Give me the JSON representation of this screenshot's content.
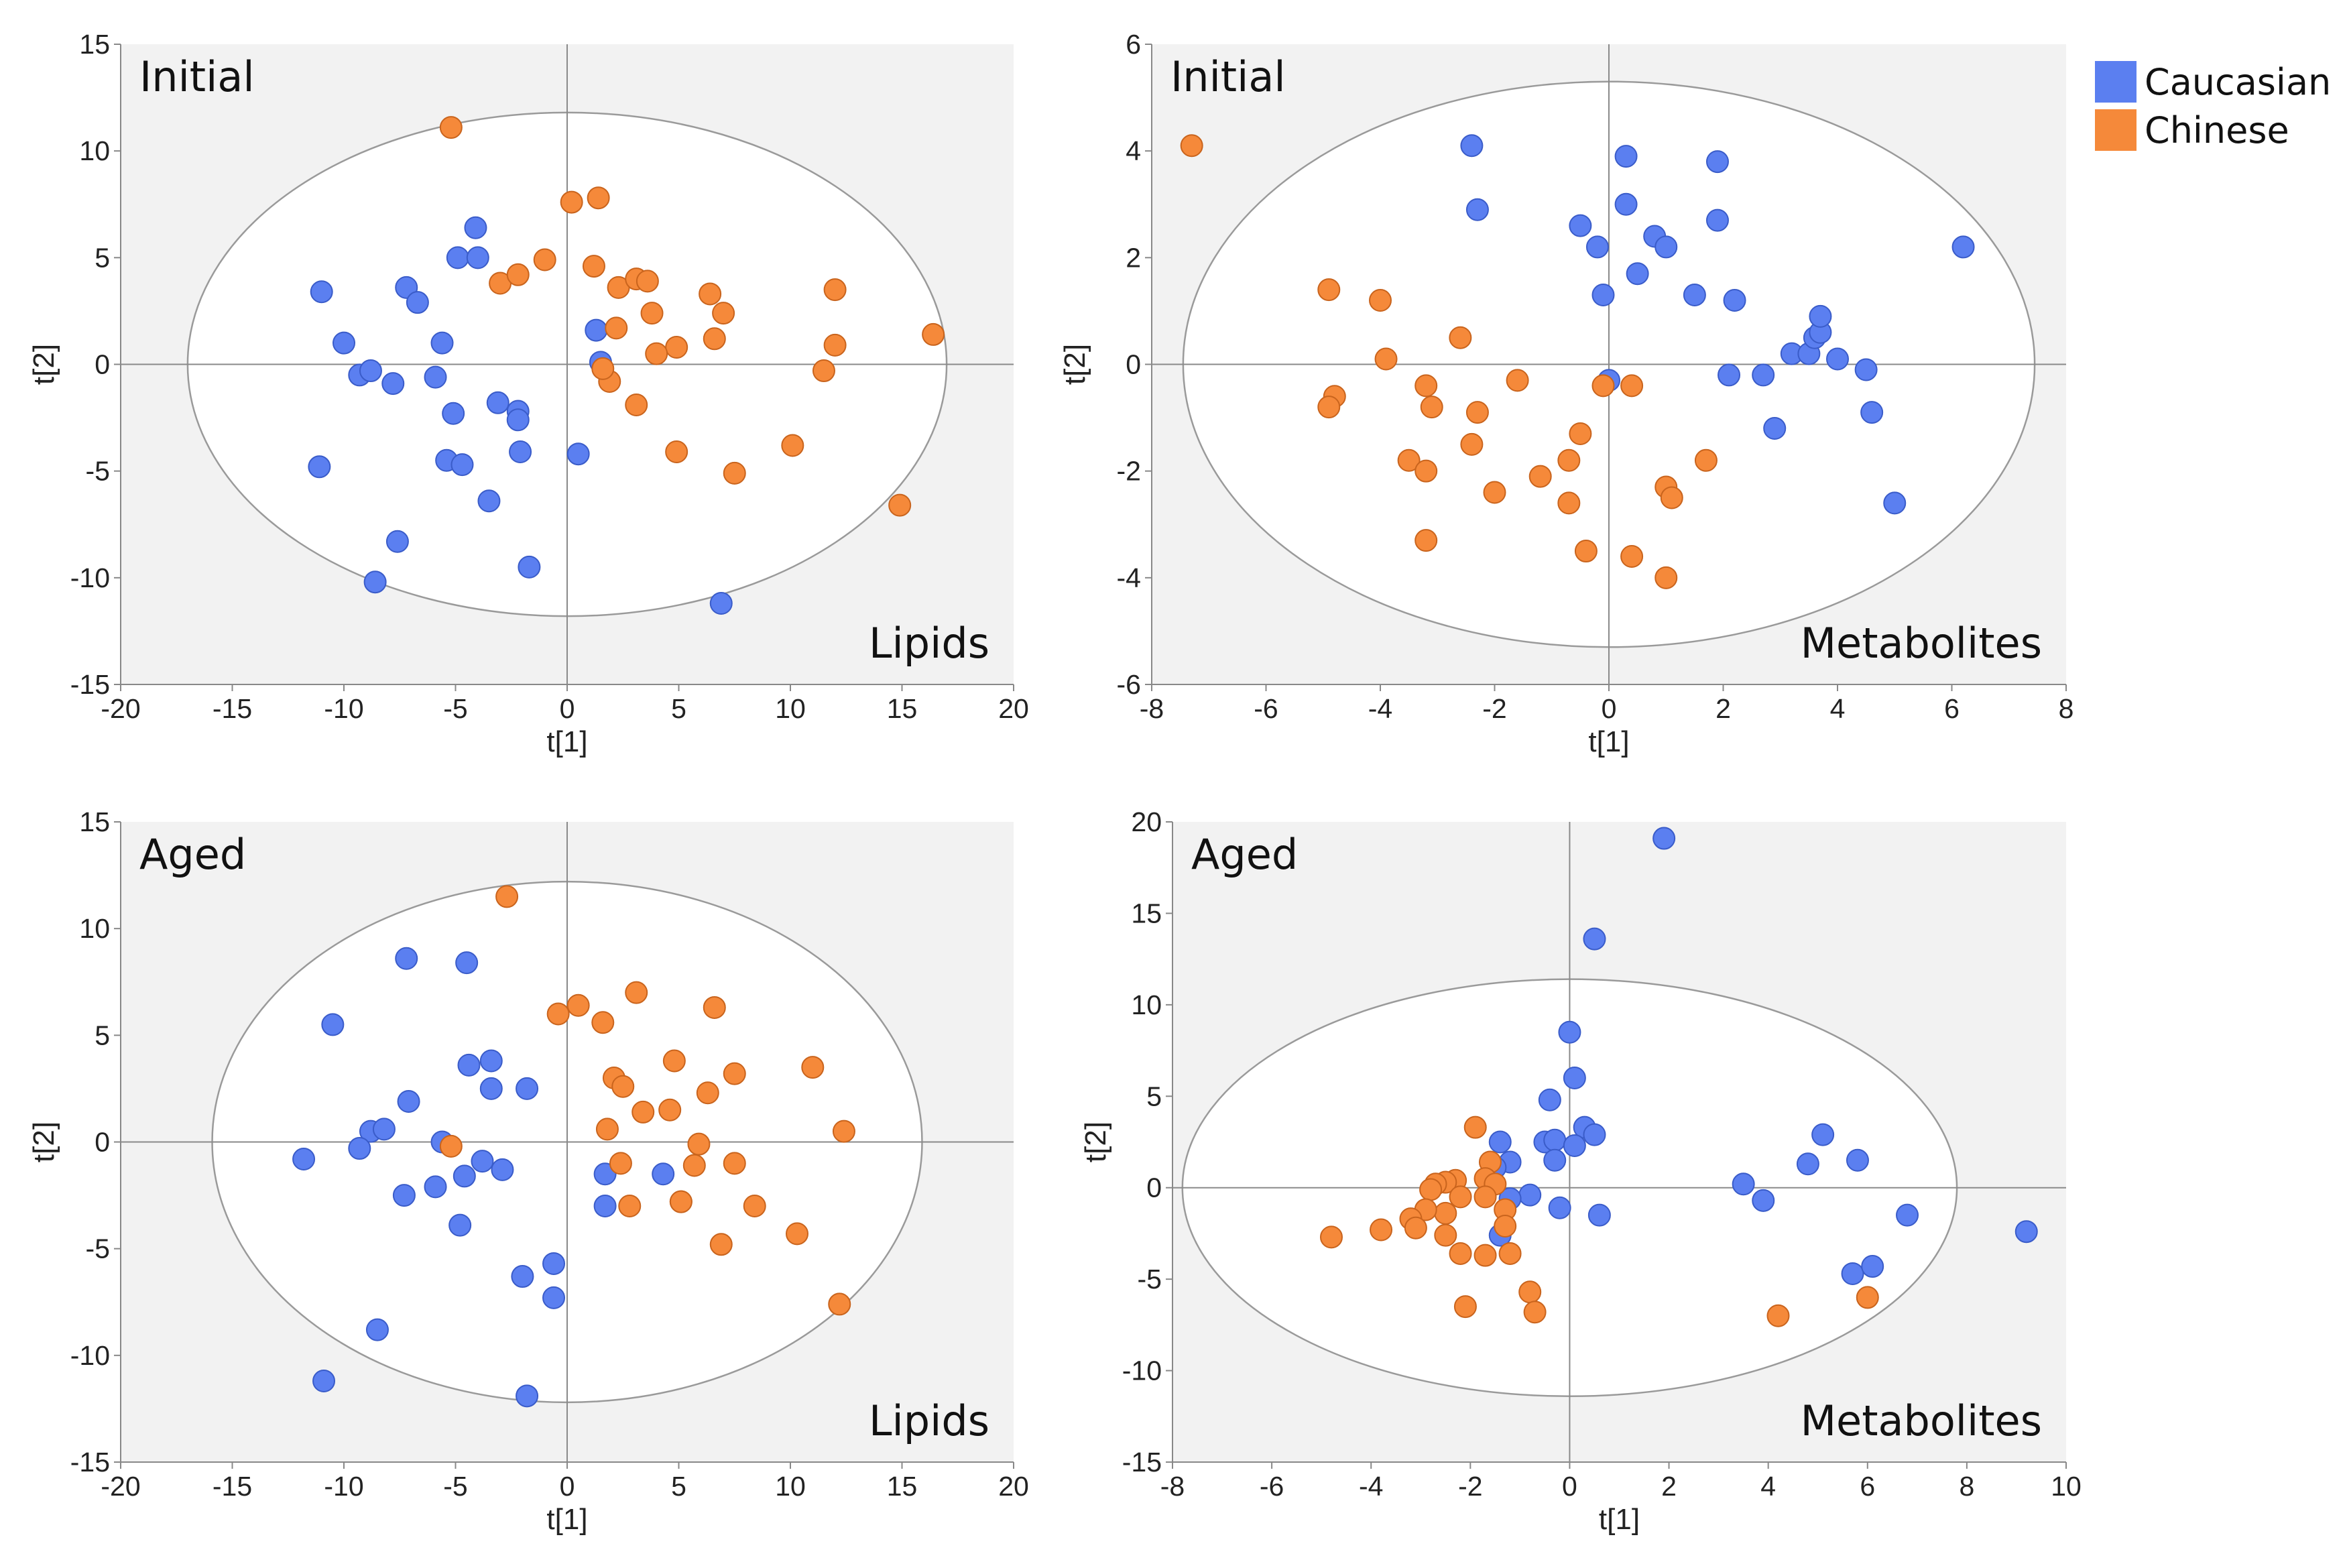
{
  "legend": {
    "caucasian_label": "Caucasian",
    "chinese_label": "Chinese"
  },
  "colors": {
    "caucasian": "#5B7FF0",
    "chinese": "#F5893A",
    "plot_bg": "#F2F2F2",
    "ellipse": "#9A9A9A"
  },
  "chart_data": [
    {
      "type": "scatter",
      "title": "Initial",
      "annotation": "Lipids",
      "xlabel": "t[1]",
      "ylabel": "t[2]",
      "xlim": [
        -20,
        20
      ],
      "ylim": [
        -15,
        15
      ],
      "xticks": [
        -20,
        -15,
        -10,
        -5,
        0,
        5,
        10,
        15,
        20
      ],
      "yticks": [
        -15,
        -10,
        -5,
        0,
        5,
        10,
        15
      ],
      "ellipse": {
        "cx": 0,
        "cy": 0,
        "rx": 17,
        "ry": 11.8
      },
      "series": [
        {
          "name": "Caucasian",
          "points": [
            [
              -11,
              3.4
            ],
            [
              -10,
              1
            ],
            [
              -9.3,
              -0.5
            ],
            [
              -8.8,
              -0.3
            ],
            [
              -7.8,
              -0.9
            ],
            [
              -7.2,
              3.6
            ],
            [
              -6.7,
              2.9
            ],
            [
              -5.9,
              -0.6
            ],
            [
              -5.6,
              1
            ],
            [
              -5.4,
              -4.5
            ],
            [
              -5.1,
              -2.3
            ],
            [
              -4.9,
              5
            ],
            [
              -4.7,
              -4.7
            ],
            [
              -4.1,
              6.4
            ],
            [
              -4,
              5
            ],
            [
              -3.5,
              -6.4
            ],
            [
              -3.1,
              -1.8
            ],
            [
              -2.2,
              -2.2
            ],
            [
              -2.2,
              -2.6
            ],
            [
              -2.1,
              -4.1
            ],
            [
              -1.7,
              -9.5
            ],
            [
              0.5,
              -4.2
            ],
            [
              1.3,
              1.6
            ],
            [
              1.5,
              0.1
            ],
            [
              -11.1,
              -4.8
            ],
            [
              -8.6,
              -10.2
            ],
            [
              -7.6,
              -8.3
            ],
            [
              6.9,
              -11.2
            ]
          ]
        },
        {
          "name": "Chinese",
          "points": [
            [
              -5.2,
              11.1
            ],
            [
              0.2,
              7.6
            ],
            [
              1.4,
              7.8
            ],
            [
              -3,
              3.8
            ],
            [
              -2.2,
              4.2
            ],
            [
              -1,
              4.9
            ],
            [
              1.2,
              4.6
            ],
            [
              2.3,
              3.6
            ],
            [
              3.1,
              4
            ],
            [
              3.6,
              3.9
            ],
            [
              3.8,
              2.4
            ],
            [
              2.2,
              1.7
            ],
            [
              4.9,
              0.8
            ],
            [
              3.1,
              -1.9
            ],
            [
              1.9,
              -0.8
            ],
            [
              1.6,
              -0.2
            ],
            [
              4,
              0.5
            ],
            [
              6.4,
              3.3
            ],
            [
              6.6,
              1.2
            ],
            [
              7,
              2.4
            ],
            [
              4.9,
              -4.1
            ],
            [
              7.5,
              -5.1
            ],
            [
              10.1,
              -3.8
            ],
            [
              11.5,
              -0.3
            ],
            [
              12,
              3.5
            ],
            [
              12,
              0.9
            ],
            [
              16.4,
              1.4
            ],
            [
              14.9,
              -6.6
            ]
          ]
        }
      ]
    },
    {
      "type": "scatter",
      "title": "Initial",
      "annotation": "Metabolites",
      "xlabel": "t[1]",
      "ylabel": "t[2]",
      "xlim": [
        -8,
        8
      ],
      "ylim": [
        -6,
        6
      ],
      "xticks": [
        -8,
        -6,
        -4,
        -2,
        0,
        2,
        4,
        6,
        8
      ],
      "yticks": [
        -6,
        -4,
        -2,
        0,
        2,
        4,
        6
      ],
      "ellipse": {
        "cx": 0,
        "cy": 0,
        "rx": 7.45,
        "ry": 5.3
      },
      "series": [
        {
          "name": "Caucasian",
          "points": [
            [
              -2.4,
              4.1
            ],
            [
              -2.3,
              2.9
            ],
            [
              0.3,
              3.9
            ],
            [
              1.9,
              3.8
            ],
            [
              0.3,
              3
            ],
            [
              1.9,
              2.7
            ],
            [
              -0.5,
              2.6
            ],
            [
              -0.2,
              2.2
            ],
            [
              0.8,
              2.4
            ],
            [
              1,
              2.2
            ],
            [
              0.5,
              1.7
            ],
            [
              -0.1,
              1.3
            ],
            [
              1.5,
              1.3
            ],
            [
              2.2,
              1.2
            ],
            [
              3.2,
              0.2
            ],
            [
              3.5,
              0.2
            ],
            [
              3.6,
              0.5
            ],
            [
              3.7,
              0.6
            ],
            [
              3.7,
              0.9
            ],
            [
              4,
              0.1
            ],
            [
              4.5,
              -0.1
            ],
            [
              4.6,
              -0.9
            ],
            [
              2.1,
              -0.2
            ],
            [
              2.7,
              -0.2
            ],
            [
              0,
              -0.3
            ],
            [
              2.9,
              -1.2
            ],
            [
              5,
              -2.6
            ],
            [
              6.2,
              2.2
            ]
          ]
        },
        {
          "name": "Chinese",
          "points": [
            [
              -7.3,
              4.1
            ],
            [
              -4.9,
              1.4
            ],
            [
              -4,
              1.2
            ],
            [
              -3.9,
              0.1
            ],
            [
              -2.6,
              0.5
            ],
            [
              -4.8,
              -0.6
            ],
            [
              -4.9,
              -0.8
            ],
            [
              -3.2,
              -0.4
            ],
            [
              -3.1,
              -0.8
            ],
            [
              -2.3,
              -0.9
            ],
            [
              -1.6,
              -0.3
            ],
            [
              -0.1,
              -0.4
            ],
            [
              0.4,
              -0.4
            ],
            [
              -2.4,
              -1.5
            ],
            [
              -3.5,
              -1.8
            ],
            [
              -3.2,
              -2
            ],
            [
              -0.5,
              -1.3
            ],
            [
              -0.7,
              -1.8
            ],
            [
              -2,
              -2.4
            ],
            [
              -1.2,
              -2.1
            ],
            [
              -0.7,
              -2.6
            ],
            [
              1,
              -2.3
            ],
            [
              1.1,
              -2.5
            ],
            [
              1.7,
              -1.8
            ],
            [
              -3.2,
              -3.3
            ],
            [
              -0.4,
              -3.5
            ],
            [
              0.4,
              -3.6
            ],
            [
              1,
              -4
            ]
          ]
        }
      ]
    },
    {
      "type": "scatter",
      "title": "Aged",
      "annotation": "Lipids",
      "xlabel": "t[1]",
      "ylabel": "t[2]",
      "xlim": [
        -20,
        20
      ],
      "ylim": [
        -15,
        15
      ],
      "xticks": [
        -20,
        -15,
        -10,
        -5,
        0,
        5,
        10,
        15,
        20
      ],
      "yticks": [
        -15,
        -10,
        -5,
        0,
        5,
        10,
        15
      ],
      "ellipse": {
        "cx": 0,
        "cy": 0,
        "rx": 15.9,
        "ry": 12.2
      },
      "series": [
        {
          "name": "Caucasian",
          "points": [
            [
              -10.5,
              5.5
            ],
            [
              -7.2,
              8.6
            ],
            [
              -4.5,
              8.4
            ],
            [
              -4.4,
              3.6
            ],
            [
              -3.4,
              3.8
            ],
            [
              -3.4,
              2.5
            ],
            [
              -1.8,
              2.5
            ],
            [
              -7.1,
              1.9
            ],
            [
              -8.8,
              0.5
            ],
            [
              -8.2,
              0.6
            ],
            [
              -9.3,
              -0.3
            ],
            [
              -11.8,
              -0.8
            ],
            [
              -5.6,
              0
            ],
            [
              -3.8,
              -0.9
            ],
            [
              -2.9,
              -1.3
            ],
            [
              -4.6,
              -1.6
            ],
            [
              -5.9,
              -2.1
            ],
            [
              -7.3,
              -2.5
            ],
            [
              -4.8,
              -3.9
            ],
            [
              -2,
              -6.3
            ],
            [
              -0.6,
              -5.7
            ],
            [
              -0.6,
              -7.3
            ],
            [
              1.7,
              -1.5
            ],
            [
              1.7,
              -3
            ],
            [
              4.3,
              -1.5
            ],
            [
              -8.5,
              -8.8
            ],
            [
              -10.9,
              -11.2
            ],
            [
              -1.8,
              -11.9
            ]
          ]
        },
        {
          "name": "Chinese",
          "points": [
            [
              -2.7,
              11.5
            ],
            [
              -0.4,
              6
            ],
            [
              0.5,
              6.4
            ],
            [
              1.6,
              5.6
            ],
            [
              3.1,
              7
            ],
            [
              6.6,
              6.3
            ],
            [
              4.8,
              3.8
            ],
            [
              2.1,
              3
            ],
            [
              2.5,
              2.6
            ],
            [
              3.4,
              1.4
            ],
            [
              4.6,
              1.5
            ],
            [
              6.3,
              2.3
            ],
            [
              7.5,
              3.2
            ],
            [
              11,
              3.5
            ],
            [
              12.4,
              0.5
            ],
            [
              1.8,
              0.6
            ],
            [
              2.4,
              -1
            ],
            [
              5.9,
              -0.1
            ],
            [
              5.7,
              -1.1
            ],
            [
              7.5,
              -1
            ],
            [
              5.1,
              -2.8
            ],
            [
              5.1,
              -2.8
            ],
            [
              2.8,
              -3
            ],
            [
              8.4,
              -3
            ],
            [
              6.9,
              -4.8
            ],
            [
              10.3,
              -4.3
            ],
            [
              12.2,
              -7.6
            ],
            [
              -5.2,
              -0.2
            ]
          ]
        }
      ]
    },
    {
      "type": "scatter",
      "title": "Aged",
      "annotation": "Metabolites",
      "xlabel": "t[1]",
      "ylabel": "t[2]",
      "xlim": [
        -8,
        10
      ],
      "ylim": [
        -15,
        20
      ],
      "xticks": [
        -8,
        -6,
        -4,
        -2,
        0,
        2,
        4,
        6,
        8,
        10
      ],
      "yticks": [
        -15,
        -10,
        -5,
        0,
        5,
        10,
        15,
        20
      ],
      "ellipse": {
        "cx": 0,
        "cy": 0,
        "rx": 7.8,
        "ry": 11.4
      },
      "series": [
        {
          "name": "Caucasian",
          "points": [
            [
              1.9,
              19.1
            ],
            [
              0.5,
              13.6
            ],
            [
              0,
              8.5
            ],
            [
              0.1,
              6
            ],
            [
              -0.4,
              4.8
            ],
            [
              -0.5,
              2.5
            ],
            [
              -0.3,
              2.6
            ],
            [
              0.3,
              3.3
            ],
            [
              0.5,
              2.9
            ],
            [
              0.1,
              2.3
            ],
            [
              -0.3,
              1.5
            ],
            [
              -1.4,
              2.5
            ],
            [
              -1.2,
              1.4
            ],
            [
              -0.8,
              -0.4
            ],
            [
              -1.2,
              -0.6
            ],
            [
              -0.2,
              -1.1
            ],
            [
              0.6,
              -1.5
            ],
            [
              -1.4,
              -2.6
            ],
            [
              3.5,
              0.2
            ],
            [
              3.9,
              -0.7
            ],
            [
              4.8,
              1.3
            ],
            [
              5.1,
              2.9
            ],
            [
              5.8,
              1.5
            ],
            [
              6.8,
              -1.5
            ],
            [
              5.7,
              -4.7
            ],
            [
              6.1,
              -4.3
            ],
            [
              9.2,
              -2.4
            ],
            [
              -1.5,
              1.1
            ]
          ]
        },
        {
          "name": "Chinese",
          "points": [
            [
              -1.9,
              3.3
            ],
            [
              -1.6,
              1.4
            ],
            [
              -1.7,
              0.5
            ],
            [
              -2.3,
              0.4
            ],
            [
              -2.5,
              0.3
            ],
            [
              -2.7,
              0.2
            ],
            [
              -2.8,
              -0.1
            ],
            [
              -1.5,
              0.2
            ],
            [
              -2.2,
              -0.5
            ],
            [
              -2.5,
              -1.4
            ],
            [
              -2.9,
              -1.2
            ],
            [
              -3.2,
              -1.7
            ],
            [
              -3.1,
              -2.2
            ],
            [
              -1.7,
              -0.5
            ],
            [
              -1.3,
              -1.2
            ],
            [
              -1.3,
              -2.1
            ],
            [
              -1.2,
              -3.6
            ],
            [
              -1.7,
              -3.7
            ],
            [
              -2.2,
              -3.6
            ],
            [
              -2.5,
              -2.6
            ],
            [
              -3.8,
              -2.3
            ],
            [
              -4.8,
              -2.7
            ],
            [
              -0.8,
              -5.7
            ],
            [
              -0.7,
              -6.8
            ],
            [
              -2.1,
              -6.5
            ],
            [
              4.2,
              -7
            ],
            [
              6,
              -6
            ]
          ]
        }
      ]
    }
  ]
}
